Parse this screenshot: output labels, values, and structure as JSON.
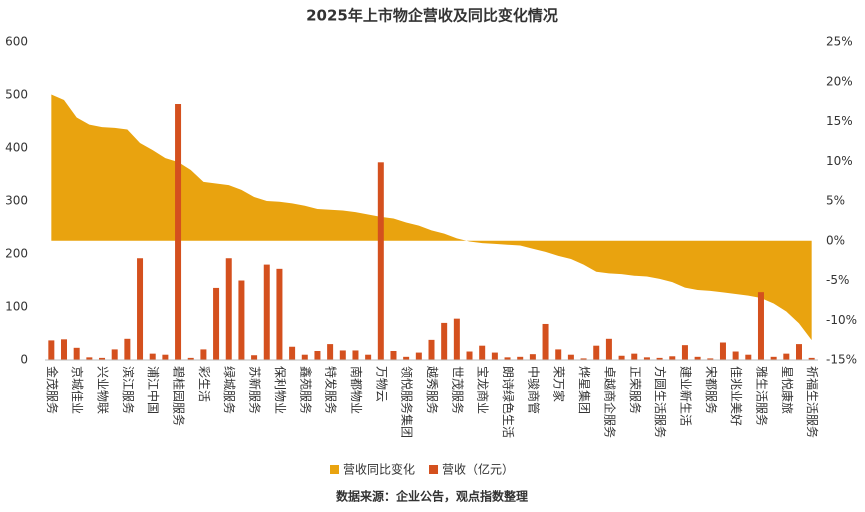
{
  "chart_data": {
    "type": "bar_area",
    "title": "2025年上市物企营收及同比变化情况",
    "source": "数据来源：企业公告，观点指数整理",
    "categories": [
      "金茂服务",
      null,
      "京城佳业",
      null,
      "兴业物联",
      null,
      "滨江服务",
      null,
      "浦江中国",
      null,
      "碧桂园服务",
      null,
      "彩生活",
      null,
      "绿城服务",
      null,
      "苏新服务",
      null,
      "保利物业",
      null,
      "鑫苑服务",
      null,
      "特发服务",
      null,
      "南都物业",
      null,
      "万物云",
      null,
      "领悦服务集团",
      null,
      "越秀服务",
      null,
      "世茂服务",
      null,
      "宝龙商业",
      null,
      "朗诗绿色生活",
      null,
      "中骏商管",
      null,
      "荣万家",
      null,
      "烨星集团",
      null,
      "卓越商企服务",
      null,
      "正荣服务",
      null,
      "方圆生活服务",
      null,
      "建业新生活",
      null,
      "宋都服务",
      null,
      "佳兆业美好",
      null,
      "雅生活服务",
      null,
      "星悦康旅",
      null,
      "祈福生活服务"
    ],
    "series": [
      {
        "name": "营收同比变化",
        "color": "#e9a30f",
        "axis": "y2",
        "kind": "area",
        "values": [
          18.4,
          17.7,
          15.5,
          14.6,
          14.3,
          14.2,
          14.0,
          12.3,
          11.4,
          10.4,
          9.9,
          8.9,
          7.4,
          7.2,
          7.0,
          6.4,
          5.5,
          5.0,
          4.9,
          4.7,
          4.4,
          4.0,
          3.9,
          3.8,
          3.6,
          3.3,
          3.0,
          2.8,
          2.3,
          1.9,
          1.3,
          0.9,
          0.3,
          -0.1,
          -0.3,
          -0.4,
          -0.5,
          -0.6,
          -1.0,
          -1.4,
          -1.9,
          -2.3,
          -3.0,
          -3.9,
          -4.1,
          -4.2,
          -4.4,
          -4.5,
          -4.8,
          -5.2,
          -5.9,
          -6.2,
          -6.3,
          -6.5,
          -6.7,
          -6.9,
          -7.2,
          -7.9,
          -8.9,
          -10.4,
          -12.5
        ]
      },
      {
        "name": "营收（亿元）",
        "color": "#d4501e",
        "kind": "bar",
        "values": [
          37,
          39,
          23,
          5,
          4,
          20,
          40,
          192,
          12,
          10,
          483,
          4,
          20,
          136,
          192,
          150,
          9,
          180,
          172,
          25,
          10,
          17,
          30,
          18,
          18,
          10,
          373,
          17,
          6,
          14,
          38,
          70,
          78,
          16,
          27,
          14,
          5,
          6,
          11,
          68,
          20,
          10,
          3,
          27,
          40,
          8,
          12,
          5,
          4,
          7,
          28,
          6,
          3,
          33,
          16,
          10,
          128,
          6,
          12,
          30,
          4
        ]
      }
    ],
    "ylim": [
      0,
      600
    ],
    "yticks": [
      0,
      100,
      200,
      300,
      400,
      500,
      600
    ],
    "y2lim": [
      -15,
      25
    ],
    "y2ticks": [
      {
        "value": -15,
        "label": "-15%"
      },
      {
        "value": -10,
        "label": "-10%"
      },
      {
        "value": -5,
        "label": "-5%"
      },
      {
        "value": 0,
        "label": "0%"
      },
      {
        "value": 5,
        "label": "5%"
      },
      {
        "value": 10,
        "label": "10%"
      },
      {
        "value": 15,
        "label": "15%"
      },
      {
        "value": 20,
        "label": "20%"
      },
      {
        "value": 25,
        "label": "25%"
      }
    ],
    "legend": "bottom"
  }
}
